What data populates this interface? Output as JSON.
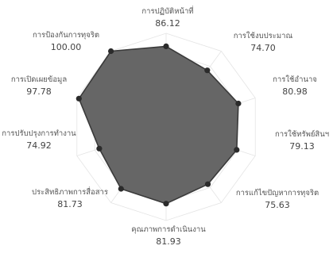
{
  "chart_data": {
    "type": "radar",
    "title": "",
    "range": [
      0,
      100
    ],
    "grid": true,
    "axes": [
      {
        "label": "การปฏิบัติหน้าที่",
        "value": 86.12,
        "value_text": "86.12"
      },
      {
        "label": "การใช้งบประมาณ",
        "value": 74.7,
        "value_text": "74.70"
      },
      {
        "label": "การใช้อำนาจ",
        "value": 80.98,
        "value_text": "80.98"
      },
      {
        "label": "การใช้ทรัพย์สินฯ",
        "value": 79.13,
        "value_text": "79.13"
      },
      {
        "label": "การแก้ไขปัญหาการทุจริต",
        "value": 75.63,
        "value_text": "75.63"
      },
      {
        "label": "คุณภาพการดำเนินงาน",
        "value": 81.93,
        "value_text": "81.93"
      },
      {
        "label": "ประสิทธิภาพการสื่อสาร",
        "value": 81.73,
        "value_text": "81.73"
      },
      {
        "label": "การปรับปรุงการทำงาน",
        "value": 74.92,
        "value_text": "74.92"
      },
      {
        "label": "การเปิดเผยข้อมูล",
        "value": 97.78,
        "value_text": "97.78"
      },
      {
        "label": "การป้องกันการทุจริต",
        "value": 100.0,
        "value_text": "100.00"
      }
    ],
    "colors": {
      "fill": "#666666",
      "stroke": "#3a3a3a",
      "point": "#2b2b2b",
      "grid": "#e4e4e4",
      "axis_label": "#555555",
      "value_label": "#444444"
    }
  }
}
